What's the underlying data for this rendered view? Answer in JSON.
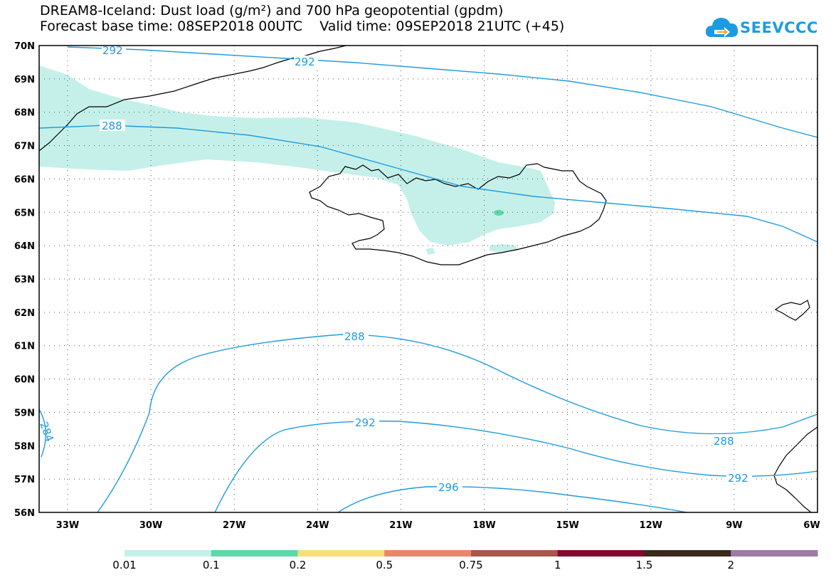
{
  "header": {
    "title_line1": "DREAM8-Iceland: Dust load (g/m²) and 700 hPa geopotential (gpdm)",
    "title_line2": "Forecast base time: 08SEP2018 00UTC    Valid time: 09SEP2018 21UTC (+45)"
  },
  "logo": {
    "text": "SEEVCCC",
    "icon": "cloud-arrow-icon",
    "color": "#1e9be0"
  },
  "map": {
    "lat_labels": [
      "70N",
      "69N",
      "68N",
      "67N",
      "66N",
      "65N",
      "64N",
      "63N",
      "62N",
      "61N",
      "60N",
      "59N",
      "58N",
      "57N",
      "56N"
    ],
    "lon_labels": [
      "33W",
      "30W",
      "27W",
      "24W",
      "21W",
      "18W",
      "15W",
      "12W",
      "9W",
      "6W"
    ],
    "contour_color": "#1e9be0",
    "coast_color": "#000000",
    "dust_color": "#c5f0ea",
    "dust_high_color": "#5ed8a8",
    "contour_labels": [
      "292",
      "292",
      "288",
      "288",
      "292",
      "288",
      "292",
      "296",
      "284"
    ]
  },
  "legend": {
    "colors": [
      "#c5f0ea",
      "#5ed8a8",
      "#f7e07a",
      "#e9876a",
      "#a8574a",
      "#84082e",
      "#3a2a1c",
      "#a07aa6"
    ],
    "labels": [
      "0.01",
      "0.1",
      "0.2",
      "0.5",
      "0.75",
      "1",
      "1.5",
      "2"
    ]
  }
}
